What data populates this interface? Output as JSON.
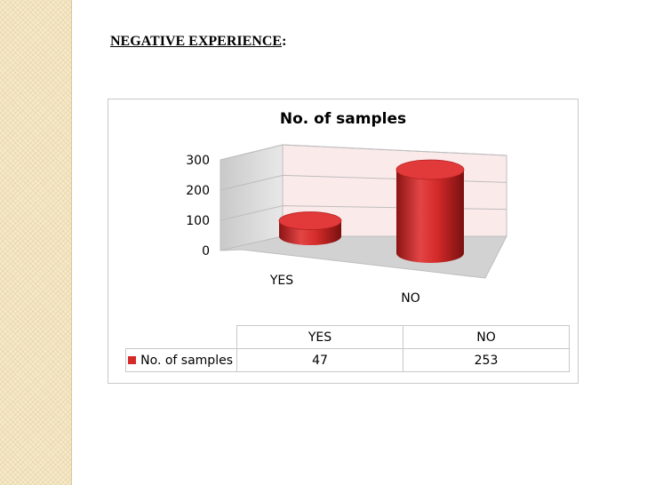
{
  "page": {
    "heading_main": "NEGATIVE EXPERIENCE",
    "heading_suffix": ":"
  },
  "chart_data": {
    "type": "bar",
    "style": "3d-cylinder",
    "title": "No. of samples",
    "categories": [
      "YES",
      "NO"
    ],
    "series": [
      {
        "name": "No. of samples",
        "values": [
          47,
          253
        ]
      }
    ],
    "yticks": [
      0,
      100,
      200,
      300
    ],
    "ylim": [
      0,
      300
    ],
    "legend": "bottom-left (data table)",
    "color": "#d42a2a"
  }
}
